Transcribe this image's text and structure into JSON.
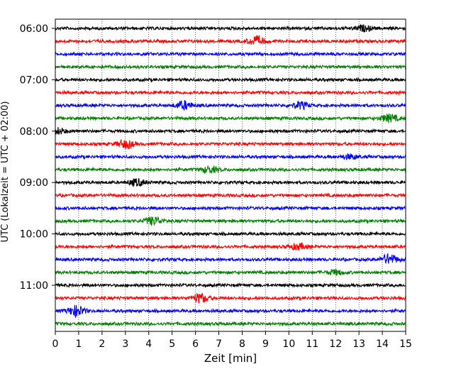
{
  "chart_data": {
    "type": "line",
    "xlabel": "Zeit  [min]",
    "ylabel": "UTC (Lokalzeit = UTC + 02:00)",
    "xlim": [
      0,
      15
    ],
    "x_ticks": [
      0,
      1,
      2,
      3,
      4,
      5,
      6,
      7,
      8,
      9,
      10,
      11,
      12,
      13,
      14,
      15
    ],
    "x_tick_labels": [
      "0",
      "1",
      "2",
      "3",
      "4",
      "5",
      "6",
      "7",
      "8",
      "9",
      "10",
      "11",
      "12",
      "13",
      "14",
      "15"
    ],
    "vertical_grid": true,
    "y_tick_labels": [
      "06:00",
      "07:00",
      "08:00",
      "09:00",
      "10:00",
      "11:00"
    ],
    "trace_colors": [
      "#000000",
      "#ff0000",
      "#0000ff",
      "#008000"
    ],
    "traces": [
      {
        "start": "06:00",
        "color": "#000000",
        "events": [
          {
            "t": 13.2,
            "amp": 0.7
          }
        ]
      },
      {
        "start": "06:15",
        "color": "#ff0000",
        "events": [
          {
            "t": 8.6,
            "amp": 1.2
          }
        ]
      },
      {
        "start": "06:30",
        "color": "#0000ff",
        "events": []
      },
      {
        "start": "06:45",
        "color": "#008000",
        "events": []
      },
      {
        "start": "07:00",
        "color": "#000000",
        "events": []
      },
      {
        "start": "07:15",
        "color": "#ff0000",
        "events": []
      },
      {
        "start": "07:30",
        "color": "#0000ff",
        "events": [
          {
            "t": 5.5,
            "amp": 1.1
          },
          {
            "t": 10.5,
            "amp": 0.9
          }
        ]
      },
      {
        "start": "07:45",
        "color": "#008000",
        "events": [
          {
            "t": 14.3,
            "amp": 1.0
          }
        ]
      },
      {
        "start": "08:00",
        "color": "#000000",
        "events": [
          {
            "t": 0.1,
            "amp": 0.8
          }
        ]
      },
      {
        "start": "08:15",
        "color": "#ff0000",
        "events": [
          {
            "t": 3.0,
            "amp": 1.1
          }
        ]
      },
      {
        "start": "08:30",
        "color": "#0000ff",
        "events": [
          {
            "t": 12.6,
            "amp": 0.6
          }
        ]
      },
      {
        "start": "08:45",
        "color": "#008000",
        "events": [
          {
            "t": 6.6,
            "amp": 0.8
          }
        ]
      },
      {
        "start": "09:00",
        "color": "#000000",
        "events": [
          {
            "t": 3.5,
            "amp": 0.9
          }
        ]
      },
      {
        "start": "09:15",
        "color": "#ff0000",
        "events": []
      },
      {
        "start": "09:30",
        "color": "#0000ff",
        "events": []
      },
      {
        "start": "09:45",
        "color": "#008000",
        "events": [
          {
            "t": 4.2,
            "amp": 1.1
          }
        ]
      },
      {
        "start": "10:00",
        "color": "#000000",
        "events": []
      },
      {
        "start": "10:15",
        "color": "#ff0000",
        "events": [
          {
            "t": 10.4,
            "amp": 0.8
          }
        ]
      },
      {
        "start": "10:30",
        "color": "#0000ff",
        "events": [
          {
            "t": 14.3,
            "amp": 1.3
          }
        ]
      },
      {
        "start": "10:45",
        "color": "#008000",
        "events": [
          {
            "t": 12.0,
            "amp": 0.6
          }
        ]
      },
      {
        "start": "11:00",
        "color": "#000000",
        "events": []
      },
      {
        "start": "11:15",
        "color": "#ff0000",
        "events": [
          {
            "t": 6.2,
            "amp": 1.2
          }
        ]
      },
      {
        "start": "11:30",
        "color": "#0000ff",
        "events": [
          {
            "t": 0.9,
            "amp": 1.4
          }
        ]
      },
      {
        "start": "11:45",
        "color": "#008000",
        "events": []
      }
    ]
  }
}
